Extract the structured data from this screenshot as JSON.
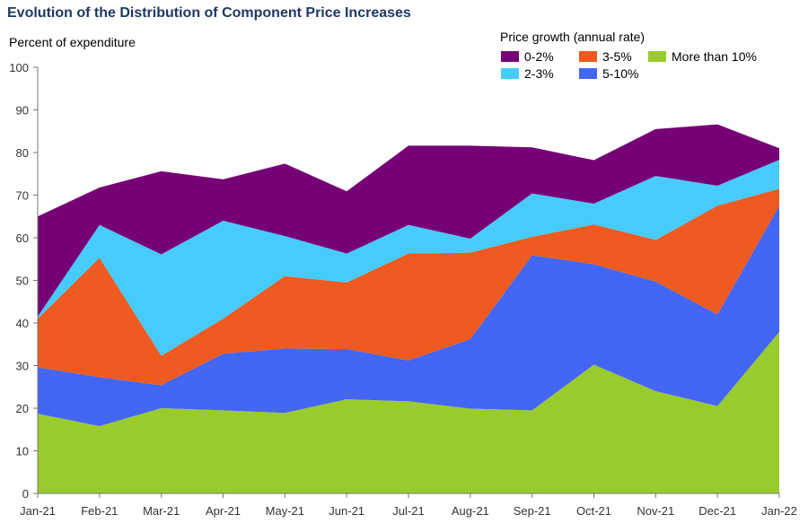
{
  "chart_data": {
    "type": "area",
    "stacked": true,
    "title": "Evolution of the Distribution of Component Price Increases",
    "ylabel": "Percent of expenditure",
    "xlabel": "",
    "ylim": [
      0,
      100
    ],
    "yticks": [
      0,
      10,
      20,
      30,
      40,
      50,
      60,
      70,
      80,
      90,
      100
    ],
    "grid": false,
    "legend_title": "Price growth (annual rate)",
    "legend_position": "top-right",
    "categories": [
      "Jan-21",
      "Feb-21",
      "Mar-21",
      "Apr-21",
      "May-21",
      "Jun-21",
      "Jul-21",
      "Aug-21",
      "Sep-21",
      "Oct-21",
      "Nov-21",
      "Dec-21",
      "Jan-22"
    ],
    "series": [
      {
        "name": "More than 10%",
        "color": "#9acb2d",
        "values": [
          18.7,
          15.8,
          20.0,
          19.5,
          18.9,
          22.1,
          21.6,
          19.9,
          19.5,
          30.2,
          24.0,
          20.5,
          37.9
        ]
      },
      {
        "name": "5-10%",
        "color": "#4466f5",
        "values": [
          10.9,
          11.5,
          5.4,
          13.3,
          15.1,
          11.8,
          9.6,
          16.3,
          36.4,
          23.6,
          25.7,
          21.5,
          29.6
        ]
      },
      {
        "name": "3-5%",
        "color": "#ee5a1f",
        "values": [
          11.4,
          28.0,
          6.9,
          8.2,
          17.0,
          15.6,
          25.1,
          20.3,
          4.3,
          9.3,
          9.8,
          25.5,
          4.0
        ]
      },
      {
        "name": "2-3%",
        "color": "#47cbfb",
        "values": [
          0.5,
          7.7,
          23.8,
          23.0,
          9.4,
          6.8,
          6.7,
          3.3,
          10.2,
          4.9,
          15.0,
          4.7,
          6.8
        ]
      },
      {
        "name": "0-2%",
        "color": "#760076",
        "values": [
          23.5,
          8.8,
          19.5,
          9.7,
          17.0,
          14.6,
          18.6,
          21.8,
          10.8,
          10.2,
          11.0,
          14.4,
          2.7
        ]
      }
    ]
  }
}
